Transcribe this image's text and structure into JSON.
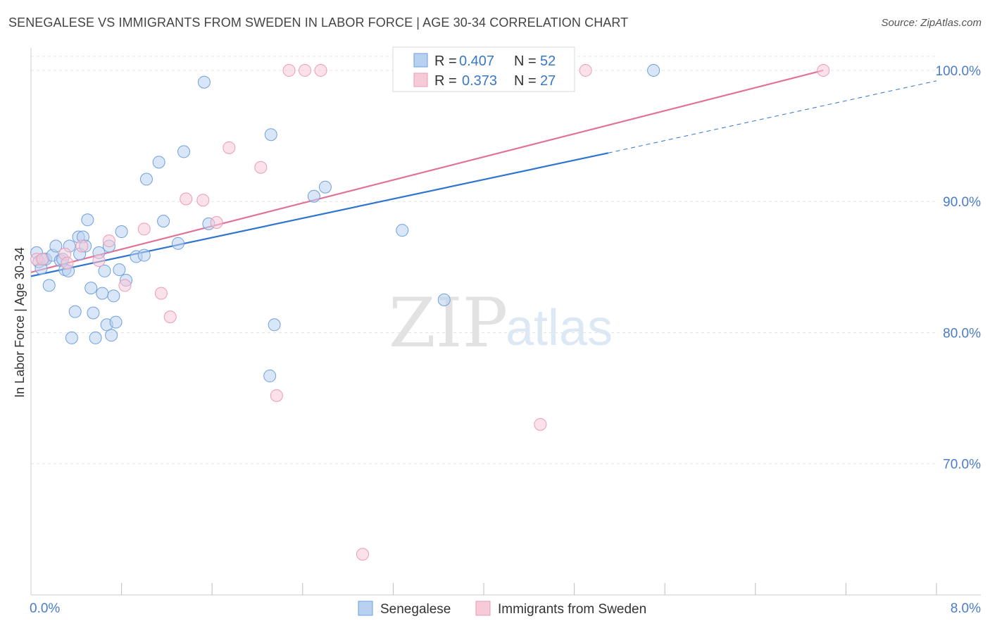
{
  "title": "SENEGALESE VS IMMIGRANTS FROM SWEDEN IN LABOR FORCE | AGE 30-34 CORRELATION CHART",
  "source": "Source: ZipAtlas.com",
  "watermark": {
    "zip": "ZIP",
    "atlas": "atlas"
  },
  "chart_data": {
    "type": "scatter",
    "title": "SENEGALESE VS IMMIGRANTS FROM SWEDEN IN LABOR FORCE | AGE 30-34 CORRELATION CHART",
    "xlabel": "",
    "ylabel": "In Labor Force | Age 30-34",
    "xlim": [
      0,
      8
    ],
    "ylim": [
      60,
      101.5
    ],
    "x_tick_labels": [
      {
        "value": 0,
        "label": "0.0%"
      },
      {
        "value": 8,
        "label": "8.0%"
      }
    ],
    "y_tick_labels": [
      {
        "value": 70,
        "label": "70.0%"
      },
      {
        "value": 80,
        "label": "80.0%"
      },
      {
        "value": 90,
        "label": "90.0%"
      },
      {
        "value": 100,
        "label": "100.0%"
      }
    ],
    "legend": {
      "entries": [
        {
          "r_label": "R =",
          "r": "0.407",
          "n_label": "N =",
          "n": "52"
        },
        {
          "r_label": "R =",
          "r": "0.373",
          "n_label": "N =",
          "n": "27"
        }
      ]
    },
    "series": [
      {
        "name": "Senegalese",
        "color": "#6f9fdc",
        "fill": "#b9d1f1",
        "line_color": "#2f74cf",
        "trend": {
          "x0": 0,
          "y0": 84.3,
          "x1": 5.1,
          "y1": 93.7,
          "dash_to_x": 8.0,
          "dash_to_y": 99.2
        },
        "points": [
          [
            0.05,
            86.1
          ],
          [
            0.07,
            85.4
          ],
          [
            0.09,
            84.9
          ],
          [
            0.11,
            85.6
          ],
          [
            0.13,
            85.6
          ],
          [
            0.16,
            83.6
          ],
          [
            0.19,
            85.9
          ],
          [
            0.22,
            86.6
          ],
          [
            0.26,
            85.5
          ],
          [
            0.28,
            85.6
          ],
          [
            0.3,
            84.8
          ],
          [
            0.33,
            84.7
          ],
          [
            0.34,
            86.6
          ],
          [
            0.36,
            79.6
          ],
          [
            0.39,
            81.6
          ],
          [
            0.42,
            87.3
          ],
          [
            0.43,
            86.0
          ],
          [
            0.46,
            87.3
          ],
          [
            0.48,
            86.6
          ],
          [
            0.5,
            88.6
          ],
          [
            0.53,
            83.4
          ],
          [
            0.55,
            81.5
          ],
          [
            0.57,
            79.6
          ],
          [
            0.6,
            86.1
          ],
          [
            0.63,
            83.0
          ],
          [
            0.65,
            84.7
          ],
          [
            0.67,
            80.6
          ],
          [
            0.69,
            86.6
          ],
          [
            0.71,
            79.8
          ],
          [
            0.73,
            82.8
          ],
          [
            0.75,
            80.8
          ],
          [
            0.78,
            84.8
          ],
          [
            0.8,
            87.7
          ],
          [
            0.84,
            84.0
          ],
          [
            0.93,
            85.8
          ],
          [
            1.0,
            85.9
          ],
          [
            1.02,
            91.7
          ],
          [
            1.13,
            93.0
          ],
          [
            1.17,
            88.5
          ],
          [
            1.3,
            86.8
          ],
          [
            1.35,
            93.8
          ],
          [
            1.53,
            99.1
          ],
          [
            1.57,
            88.3
          ],
          [
            2.11,
            76.7
          ],
          [
            2.12,
            95.1
          ],
          [
            2.15,
            80.6
          ],
          [
            2.5,
            90.4
          ],
          [
            2.6,
            91.1
          ],
          [
            3.28,
            87.8
          ],
          [
            3.65,
            82.5
          ],
          [
            4.0,
            100.0
          ],
          [
            5.5,
            100.0
          ]
        ]
      },
      {
        "name": "Immigrants from Sweden",
        "color": "#ec9bb5",
        "fill": "#f7cad8",
        "line_color": "#e07298",
        "trend": {
          "x0": 0,
          "y0": 84.6,
          "x1": 7.0,
          "y1": 100.0
        },
        "points": [
          [
            0.05,
            85.6
          ],
          [
            0.1,
            85.6
          ],
          [
            0.3,
            86.0
          ],
          [
            0.32,
            85.3
          ],
          [
            0.45,
            86.6
          ],
          [
            0.6,
            85.5
          ],
          [
            0.69,
            87.0
          ],
          [
            0.83,
            83.6
          ],
          [
            1.0,
            87.9
          ],
          [
            1.15,
            83.0
          ],
          [
            1.23,
            81.2
          ],
          [
            1.37,
            90.2
          ],
          [
            1.52,
            90.1
          ],
          [
            1.64,
            88.4
          ],
          [
            1.75,
            94.1
          ],
          [
            2.03,
            92.6
          ],
          [
            2.17,
            75.2
          ],
          [
            2.28,
            100.0
          ],
          [
            2.42,
            100.0
          ],
          [
            2.56,
            100.0
          ],
          [
            2.93,
            63.1
          ],
          [
            3.28,
            100.0
          ],
          [
            3.8,
            100.0
          ],
          [
            4.25,
            100.0
          ],
          [
            4.5,
            73.0
          ],
          [
            4.9,
            100.0
          ],
          [
            7.0,
            100.0
          ]
        ]
      }
    ]
  }
}
